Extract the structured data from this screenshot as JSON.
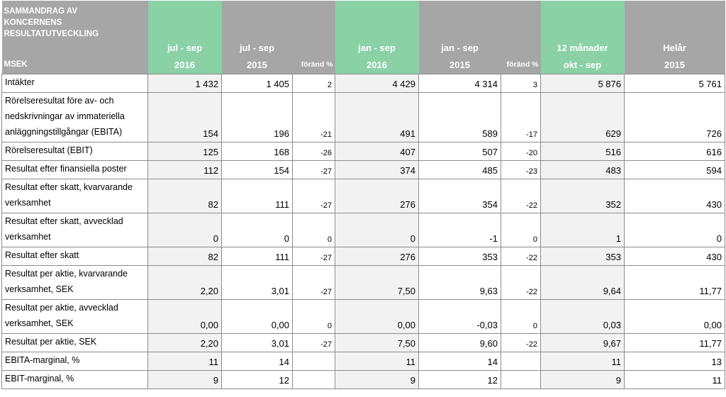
{
  "header": {
    "title_lines": [
      "SAMMANDRAG AV",
      "KONCERNENS",
      "RESULTATUTVECKLING"
    ],
    "unit": "MSEK",
    "columns": [
      {
        "top": "jul - sep",
        "bottom": "2016"
      },
      {
        "top": "jul - sep",
        "bottom": "2015"
      },
      {
        "top": "",
        "bottom": "föränd %"
      },
      {
        "top": "jan - sep",
        "bottom": "2016"
      },
      {
        "top": "jan - sep",
        "bottom": "2015"
      },
      {
        "top": "",
        "bottom": "föränd %"
      },
      {
        "top": "12 månader",
        "bottom": "okt - sep"
      },
      {
        "top": "Helår",
        "bottom": "2015"
      }
    ]
  },
  "rows": [
    {
      "label": "Intäkter",
      "values": [
        "1 432",
        "1 405",
        "2",
        "4 429",
        "4 314",
        "3",
        "5 876",
        "5 761"
      ]
    },
    {
      "label": "Rörelseresultat före av- och nedskrivningar av immateriella anläggningstillgångar (EBITA)",
      "values": [
        "154",
        "196",
        "-21",
        "491",
        "589",
        "-17",
        "629",
        "726"
      ]
    },
    {
      "label": "Rörelseresultat (EBIT)",
      "values": [
        "125",
        "168",
        "-26",
        "407",
        "507",
        "-20",
        "516",
        "616"
      ]
    },
    {
      "label": "Resultat efter finansiella poster",
      "values": [
        "112",
        "154",
        "-27",
        "374",
        "485",
        "-23",
        "483",
        "594"
      ]
    },
    {
      "label": "Resultat efter skatt, kvarvarande verksamhet",
      "values": [
        "82",
        "111",
        "-27",
        "276",
        "354",
        "-22",
        "352",
        "430"
      ]
    },
    {
      "label": "Resultat efter skatt, avvecklad verksamhet",
      "values": [
        "0",
        "0",
        "0",
        "0",
        "-1",
        "0",
        "1",
        "0"
      ]
    },
    {
      "label": "Resultat efter skatt",
      "values": [
        "82",
        "111",
        "-27",
        "276",
        "353",
        "-22",
        "353",
        "430"
      ]
    },
    {
      "label": "Resultat per aktie, kvarvarande verksamhet, SEK",
      "values": [
        "2,20",
        "3,01",
        "-27",
        "7,50",
        "9,63",
        "-22",
        "9,64",
        "11,77"
      ]
    },
    {
      "label": "Resultat per aktie, avvecklad verksamhet, SEK",
      "values": [
        "0,00",
        "0,00",
        "0",
        "0,00",
        "-0,03",
        "0",
        "0,03",
        "0,00"
      ]
    },
    {
      "label": "Resultat per aktie, SEK",
      "values": [
        "2,20",
        "3,01",
        "-27",
        "7,50",
        "9,60",
        "-22",
        "9,67",
        "11,77"
      ]
    },
    {
      "label": "EBITA-marginal, %",
      "values": [
        "11",
        "14",
        "",
        "11",
        "14",
        "",
        "11",
        "13"
      ]
    },
    {
      "label": "EBIT-marginal, %",
      "values": [
        "9",
        "12",
        "",
        "9",
        "12",
        "",
        "9",
        "11"
      ]
    }
  ]
}
